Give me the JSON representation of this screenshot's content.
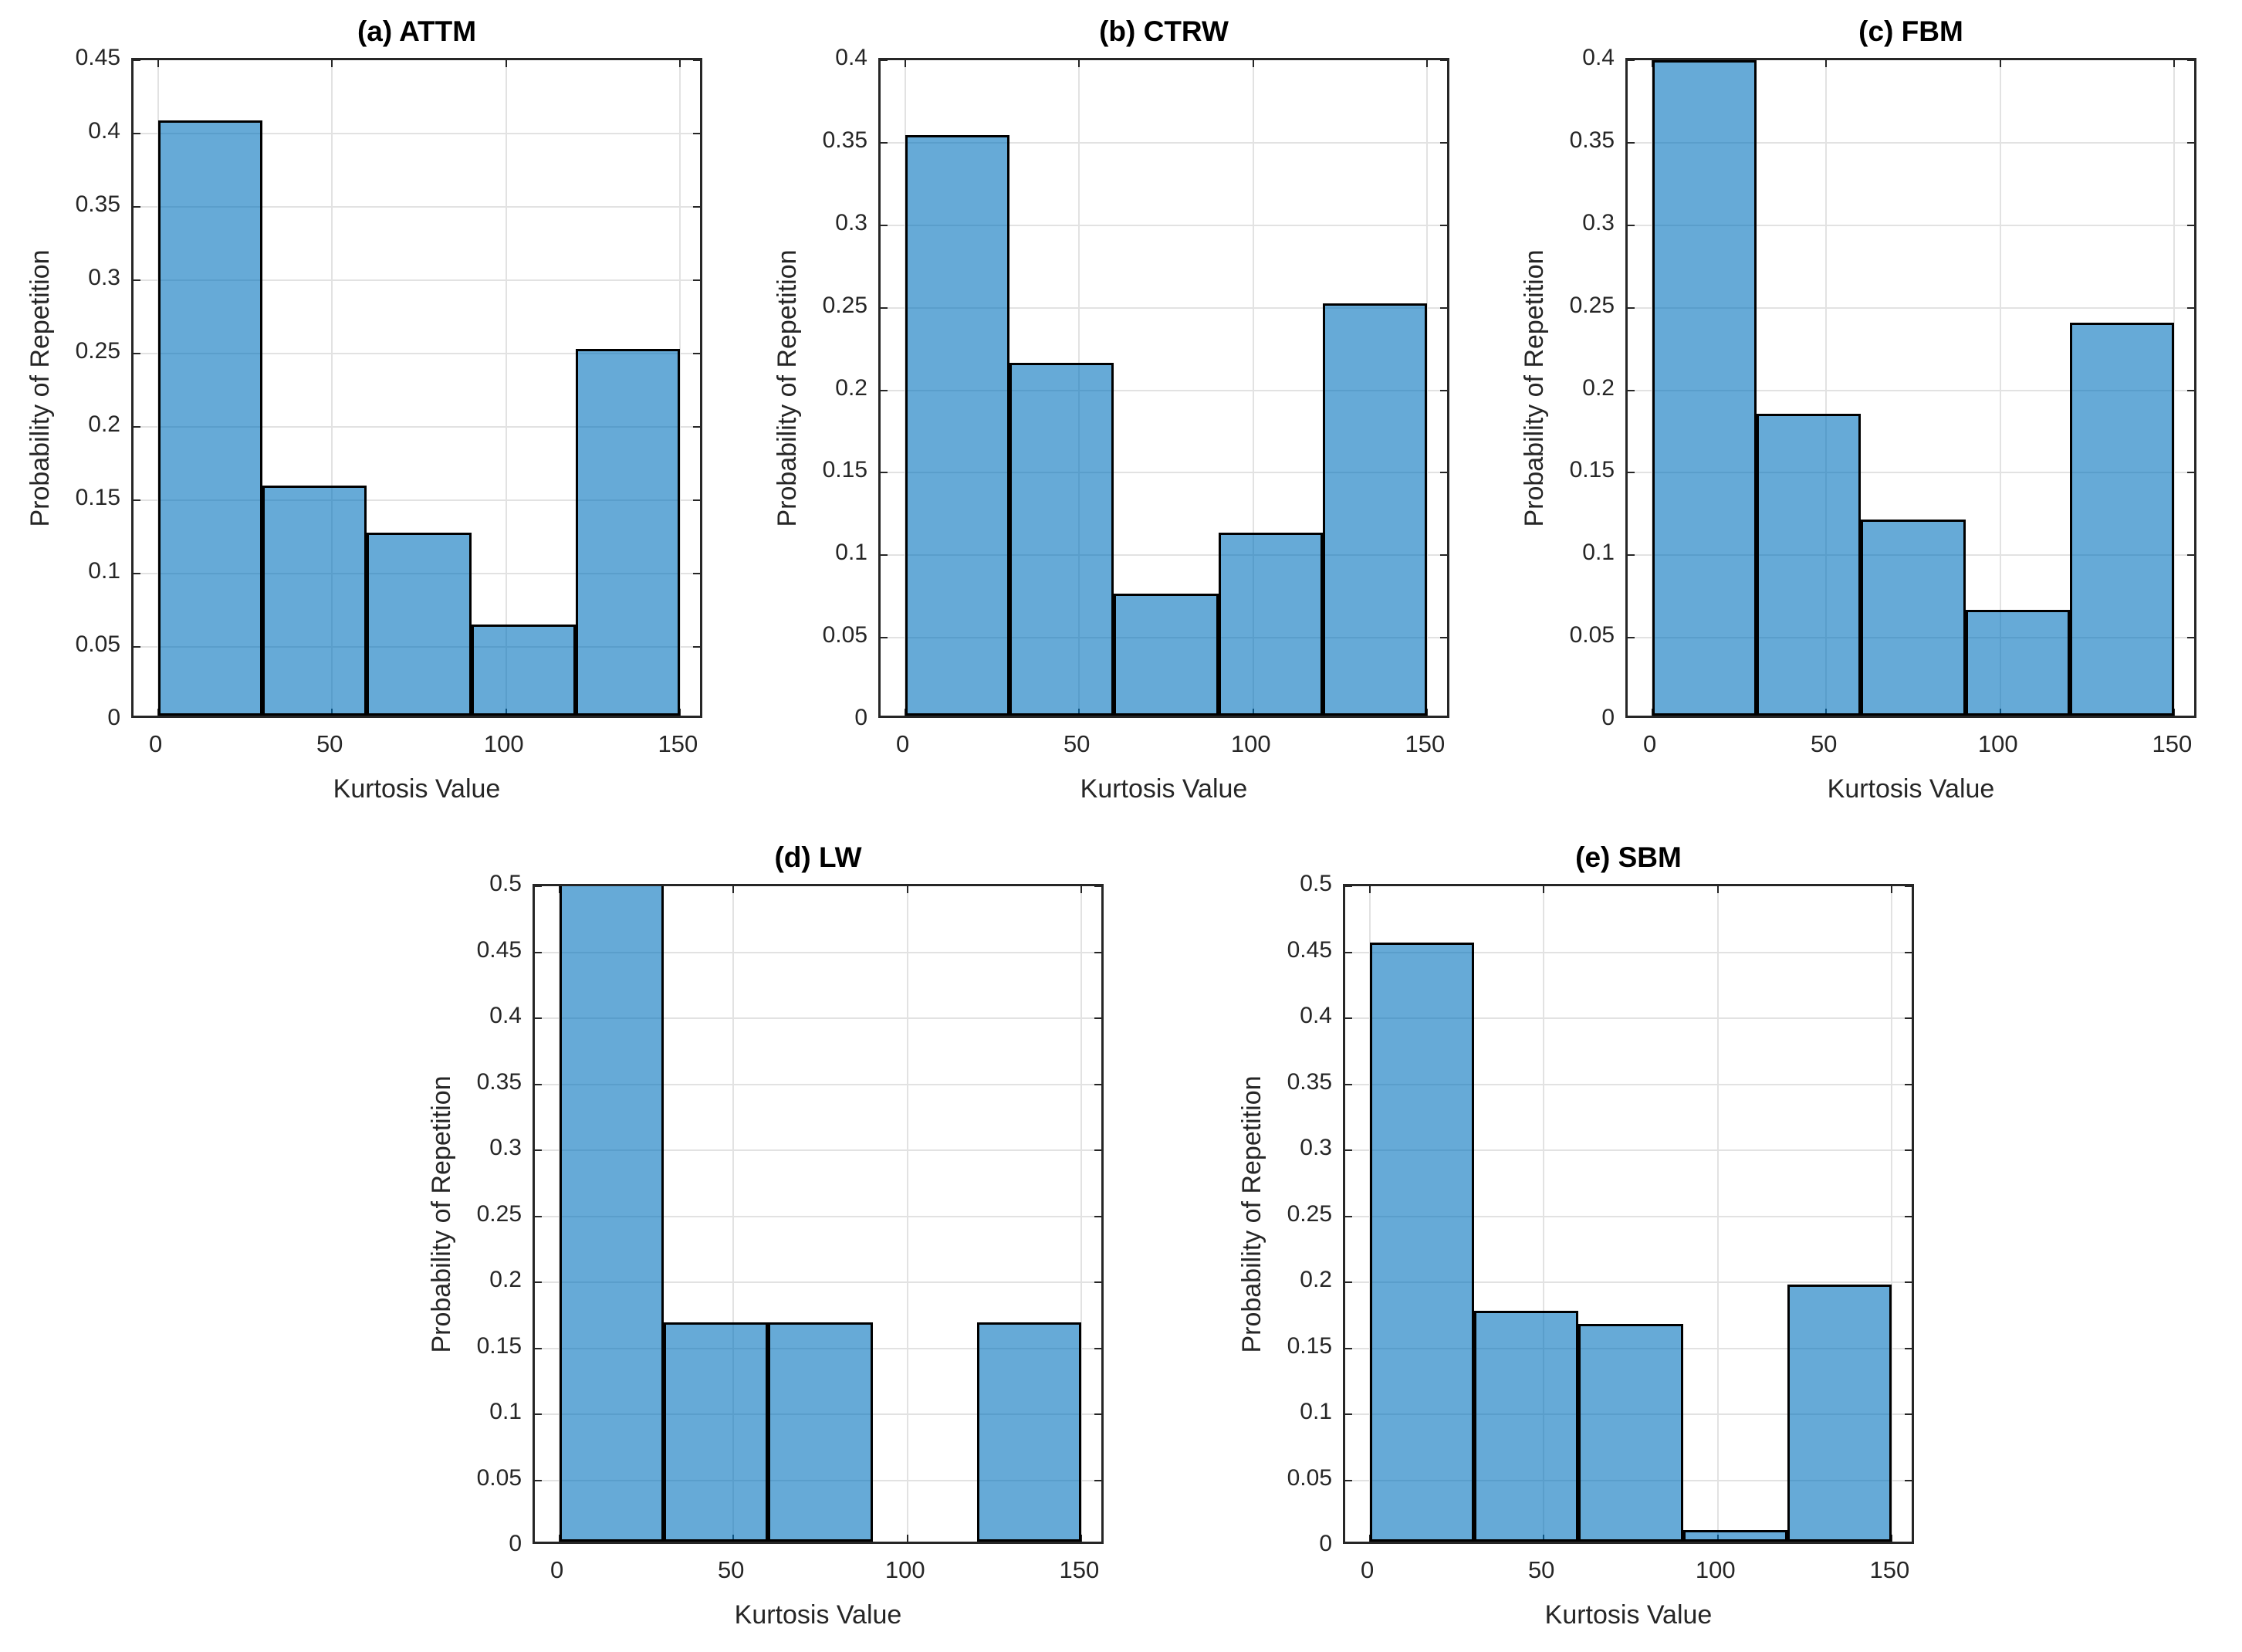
{
  "figure": {
    "background": "#ffffff",
    "description": "Five histogram subplots of kurtosis value distributions per diffusion model"
  },
  "chart_data": {
    "type": "bar",
    "shared": {
      "xlabel": "Kurtosis Value",
      "ylabel": "Probability of Repetition",
      "bin_edges": [
        0,
        30,
        60,
        90,
        120,
        150
      ],
      "xticks": [
        0,
        50,
        100,
        150
      ],
      "xlim": [
        -7,
        157
      ],
      "grid": true,
      "bar_face_color": "#0072BD",
      "bar_face_alpha": 0.6,
      "bar_edge_color": "#000000",
      "grid_color": "#e2e2e2",
      "axis_color": "#262626",
      "tick_label_color": "#262626",
      "title_color": "#000000"
    },
    "subplots": [
      {
        "title": "(a) ATTM",
        "ylim": [
          0,
          0.45
        ],
        "yticks": [
          0,
          0.05,
          0.1,
          0.15,
          0.2,
          0.25,
          0.3,
          0.35,
          0.4,
          0.45
        ],
        "values": [
          0.406,
          0.157,
          0.125,
          0.062,
          0.25
        ]
      },
      {
        "title": "(b) CTRW",
        "ylim": [
          0,
          0.4
        ],
        "yticks": [
          0,
          0.05,
          0.1,
          0.15,
          0.2,
          0.25,
          0.3,
          0.35,
          0.4
        ],
        "values": [
          0.352,
          0.214,
          0.074,
          0.111,
          0.25
        ]
      },
      {
        "title": "(c) FBM",
        "ylim": [
          0,
          0.4
        ],
        "yticks": [
          0,
          0.05,
          0.1,
          0.15,
          0.2,
          0.25,
          0.3,
          0.35,
          0.4
        ],
        "values": [
          0.397,
          0.183,
          0.119,
          0.064,
          0.238
        ]
      },
      {
        "title": "(d) LW",
        "ylim": [
          0,
          0.5
        ],
        "yticks": [
          0,
          0.05,
          0.1,
          0.15,
          0.2,
          0.25,
          0.3,
          0.35,
          0.4,
          0.45,
          0.5
        ],
        "values": [
          0.5,
          0.166,
          0.166,
          0,
          0.166
        ]
      },
      {
        "title": "(e) SBM",
        "ylim": [
          0,
          0.5
        ],
        "yticks": [
          0,
          0.05,
          0.1,
          0.15,
          0.2,
          0.25,
          0.3,
          0.35,
          0.4,
          0.45,
          0.5
        ],
        "values": [
          0.454,
          0.175,
          0.165,
          0.009,
          0.195
        ]
      }
    ]
  }
}
